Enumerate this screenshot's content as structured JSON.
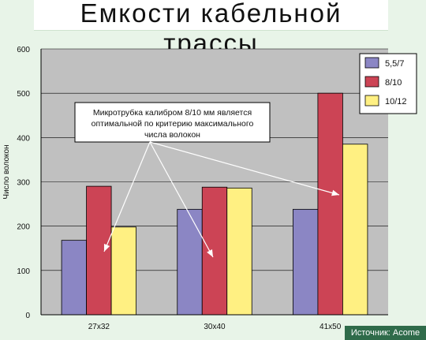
{
  "source": "Источник: Acome",
  "annotation": {
    "lines": [
      "Микротрубка калибром 8/10 мм является",
      "оптимальной по критерию максимального",
      "числа волокон"
    ]
  },
  "colors": {
    "plot_bg": "#c0c0c0",
    "background": "#e8f4e8",
    "bar_outline": "#000000"
  },
  "chart_data": {
    "type": "bar",
    "title": "Емкости кабельной трассы",
    "xlabel": "",
    "ylabel": "Число волокон",
    "ylim": [
      0,
      600
    ],
    "yticks": [
      0,
      100,
      200,
      300,
      400,
      500,
      600
    ],
    "categories": [
      "27x32",
      "30x40",
      "41x50"
    ],
    "grid": true,
    "legend_position": "top-right",
    "series": [
      {
        "name": "5,5/7",
        "color": "#8b86c4",
        "values": [
          168,
          238,
          238
        ]
      },
      {
        "name": "8/10",
        "color": "#cc4455",
        "values": [
          290,
          288,
          500
        ]
      },
      {
        "name": "10/12",
        "color": "#fff082",
        "values": [
          198,
          286,
          385
        ]
      }
    ]
  }
}
